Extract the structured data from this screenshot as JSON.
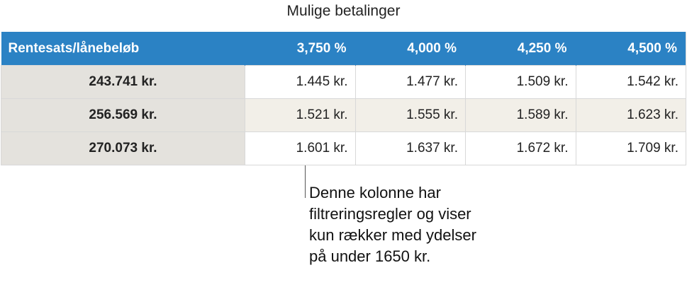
{
  "title": "Mulige betalinger",
  "table": {
    "header": [
      "Rentesats/lånebeløb",
      "3,750 %",
      "4,000 %",
      "4,250 %",
      "4,500 %"
    ],
    "rows": [
      [
        "243.741 kr.",
        "1.445 kr.",
        "1.477 kr.",
        "1.509 kr.",
        "1.542 kr."
      ],
      [
        "256.569 kr.",
        "1.521 kr.",
        "1.555 kr.",
        "1.589 kr.",
        "1.623 kr."
      ],
      [
        "270.073 kr.",
        "1.601 kr.",
        "1.637 kr.",
        "1.672 kr.",
        "1.709 kr."
      ]
    ]
  },
  "callout": {
    "lines": [
      "Denne kolonne har",
      "filtreringsregler og viser",
      "kun rækker med ydelser",
      "på under 1650 kr."
    ]
  },
  "colors": {
    "header_bg": "#2b82c4",
    "row_header_bg": "#e4e2dd",
    "alt_row_bg": "#f2efe8"
  }
}
